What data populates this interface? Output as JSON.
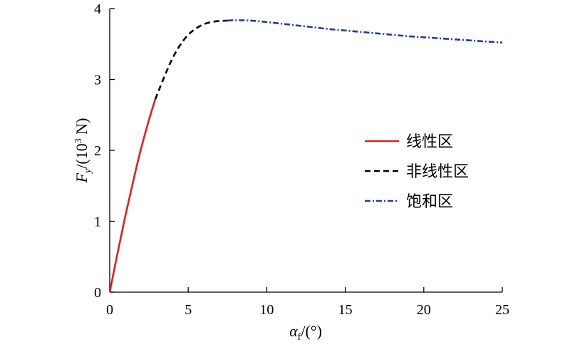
{
  "chart_data": {
    "type": "line",
    "xlabel": {
      "main": "α",
      "sub": "f",
      "rest": "/(°)"
    },
    "ylabel": {
      "main": "F",
      "sub": "y",
      "rest": "/(10",
      "sup": "3",
      "tail": " N)"
    },
    "xlim": [
      0,
      25
    ],
    "ylim": [
      0,
      4
    ],
    "xticks": [
      "0",
      "5",
      "10",
      "15",
      "20",
      "25"
    ],
    "yticks": [
      "0",
      "1",
      "2",
      "3",
      "4"
    ],
    "grid": false,
    "legend_position": "right",
    "series": [
      {
        "name": "线性区",
        "style": "solid",
        "color": "#e02020",
        "x": [
          0,
          0.5,
          1.0,
          1.5,
          2.0,
          2.5,
          2.9
        ],
        "y": [
          0,
          0.55,
          1.08,
          1.57,
          2.03,
          2.43,
          2.72
        ]
      },
      {
        "name": "非线性区",
        "style": "dashed",
        "color": "#000000",
        "x": [
          2.9,
          3.5,
          4.0,
          4.5,
          5.0,
          5.5,
          6.0,
          6.5,
          7.0,
          7.5
        ],
        "y": [
          2.72,
          3.05,
          3.3,
          3.49,
          3.63,
          3.72,
          3.78,
          3.81,
          3.825,
          3.83
        ]
      },
      {
        "name": "饱和区",
        "style": "dashdot",
        "color": "#1f3d99",
        "x": [
          7.5,
          8.0,
          9.0,
          10.0,
          11.0,
          12.0,
          13.0,
          14.0,
          15.0,
          16.0,
          17.0,
          18.0,
          19.0,
          20.0,
          21.0,
          22.0,
          23.0,
          24.0,
          25.0
        ],
        "y": [
          3.83,
          3.835,
          3.83,
          3.81,
          3.785,
          3.76,
          3.735,
          3.71,
          3.69,
          3.67,
          3.65,
          3.63,
          3.61,
          3.595,
          3.58,
          3.565,
          3.55,
          3.535,
          3.52
        ]
      }
    ]
  }
}
